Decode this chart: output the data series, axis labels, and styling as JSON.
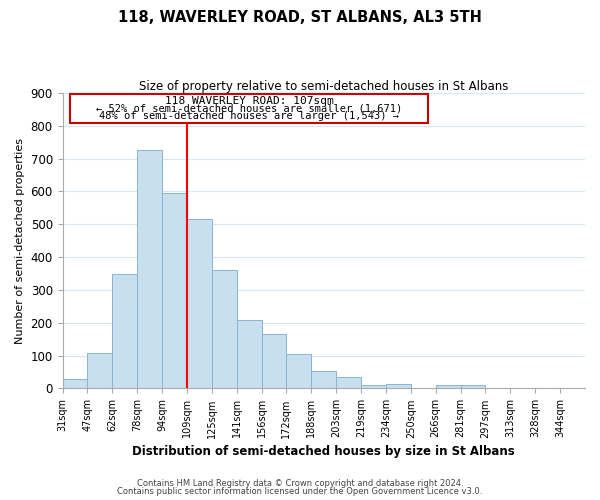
{
  "title": "118, WAVERLEY ROAD, ST ALBANS, AL3 5TH",
  "subtitle": "Size of property relative to semi-detached houses in St Albans",
  "xlabel": "Distribution of semi-detached houses by size in St Albans",
  "ylabel": "Number of semi-detached properties",
  "bin_labels": [
    "31sqm",
    "47sqm",
    "62sqm",
    "78sqm",
    "94sqm",
    "109sqm",
    "125sqm",
    "141sqm",
    "156sqm",
    "172sqm",
    "188sqm",
    "203sqm",
    "219sqm",
    "234sqm",
    "250sqm",
    "266sqm",
    "281sqm",
    "297sqm",
    "313sqm",
    "328sqm",
    "344sqm"
  ],
  "bar_heights": [
    30,
    108,
    350,
    725,
    595,
    515,
    360,
    210,
    165,
    105,
    52,
    35,
    12,
    15,
    0,
    12,
    12,
    0,
    0,
    0,
    0
  ],
  "bar_color": "#c8dff0",
  "bar_edge_color": "#8ab4d4",
  "grid_color": "#d5e8f5",
  "vline_x_index": 5,
  "vline_color": "red",
  "annotation_title": "118 WAVERLEY ROAD: 107sqm",
  "annotation_line1": "← 52% of semi-detached houses are smaller (1,671)",
  "annotation_line2": "48% of semi-detached houses are larger (1,543) →",
  "footnote1": "Contains HM Land Registry data © Crown copyright and database right 2024.",
  "footnote2": "Contains public sector information licensed under the Open Government Licence v3.0.",
  "ylim": [
    0,
    900
  ],
  "yticks": [
    0,
    100,
    200,
    300,
    400,
    500,
    600,
    700,
    800,
    900
  ],
  "ann_box_edge": "#cc0000",
  "ann_box_face": "#ffffff"
}
